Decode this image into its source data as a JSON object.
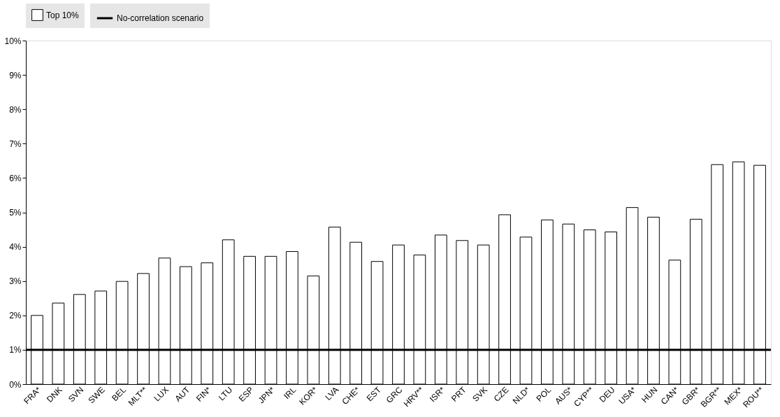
{
  "chart_data": {
    "type": "bar",
    "categories": [
      "FRA*",
      "DNK",
      "SVN",
      "SWE",
      "BEL",
      "MLT**",
      "LUX",
      "AUT",
      "FIN*",
      "LTU",
      "ESP",
      "JPN*",
      "IRL",
      "KOR*",
      "LVA",
      "CHE*",
      "EST",
      "GRC",
      "HRV**",
      "ISR*",
      "PRT",
      "SVK",
      "CZE",
      "NLD*",
      "POL",
      "AUS*",
      "CYP**",
      "DEU",
      "USA*",
      "HUN",
      "CAN*",
      "GBR*",
      "BGR**",
      "MEX*",
      "ROU**"
    ],
    "series": [
      {
        "name": "Top 10%",
        "color": "#ffffff",
        "values": [
          2.0,
          2.36,
          2.61,
          2.71,
          2.99,
          3.22,
          3.67,
          3.42,
          3.53,
          4.2,
          3.72,
          3.72,
          3.86,
          3.15,
          4.57,
          4.13,
          3.57,
          4.05,
          3.76,
          4.34,
          4.18,
          4.05,
          4.93,
          4.28,
          4.78,
          4.66,
          4.49,
          4.43,
          5.14,
          4.86,
          3.61,
          4.8,
          6.39,
          6.47,
          6.37
        ]
      }
    ],
    "ylim": [
      0,
      10
    ],
    "yticks": [
      {
        "value": 0,
        "label": "0%"
      },
      {
        "value": 1,
        "label": "1%"
      },
      {
        "value": 2,
        "label": "2%"
      },
      {
        "value": 3,
        "label": "3%"
      },
      {
        "value": 4,
        "label": "4%"
      },
      {
        "value": 5,
        "label": "5%"
      },
      {
        "value": 6,
        "label": "6%"
      },
      {
        "value": 7,
        "label": "7%"
      },
      {
        "value": 8,
        "label": "8%"
      },
      {
        "value": 9,
        "label": "9%"
      },
      {
        "value": 10,
        "label": "10%"
      }
    ],
    "ref_lines": [
      {
        "axis": "y",
        "value": 1,
        "label": "No-correlation scenario",
        "color": "#000000"
      }
    ],
    "legend": "top",
    "grid": false
  }
}
